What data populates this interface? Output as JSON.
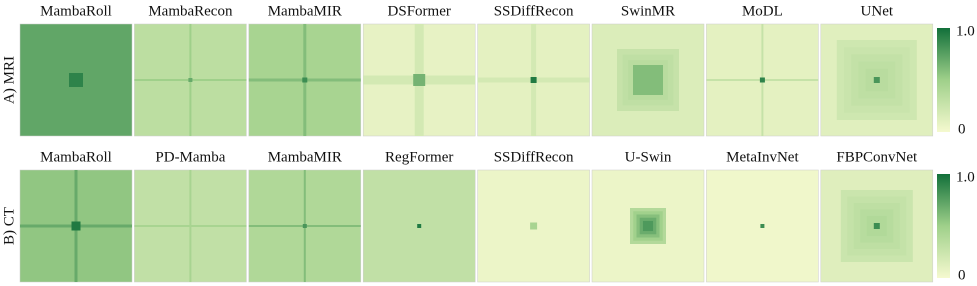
{
  "rows": [
    {
      "label": "A) MRI",
      "panels": [
        "MambaRoll",
        "MambaRecon",
        "MambaMIR",
        "DSFormer",
        "SSDiffRecon",
        "SwinMR",
        "MoDL",
        "UNet"
      ]
    },
    {
      "label": "B) CT",
      "panels": [
        "MambaRoll",
        "PD-Mamba",
        "MambaMIR",
        "RegFormer",
        "SSDiffRecon",
        "U-Swin",
        "MetaInvNet",
        "FBPConvNet"
      ]
    }
  ],
  "colorbar": {
    "max_label": "1.0",
    "min_label": "0"
  }
}
